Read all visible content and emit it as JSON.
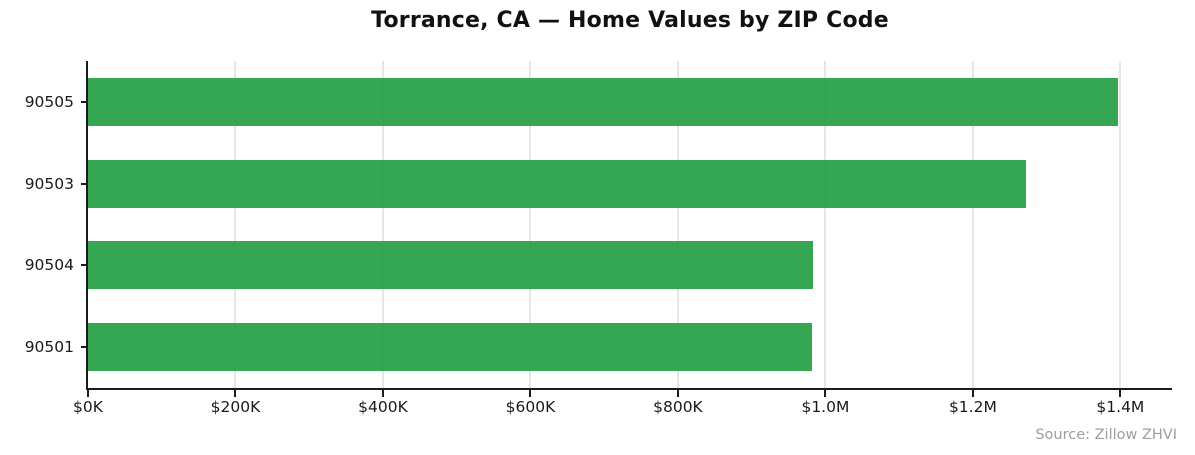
{
  "chart_data": {
    "type": "bar",
    "orientation": "horizontal",
    "title": "Torrance, CA — Home Values by ZIP Code",
    "categories": [
      "90505",
      "90503",
      "90504",
      "90501"
    ],
    "values": [
      1397000,
      1272000,
      983000,
      982000
    ],
    "value_unit": "USD",
    "xlabel": "",
    "ylabel": "",
    "xlim": [
      0,
      1470000
    ],
    "xticks": [
      {
        "value": 0,
        "label": "$0K"
      },
      {
        "value": 200000,
        "label": "$200K"
      },
      {
        "value": 400000,
        "label": "$400K"
      },
      {
        "value": 600000,
        "label": "$600K"
      },
      {
        "value": 800000,
        "label": "$800K"
      },
      {
        "value": 1000000,
        "label": "$1.0M"
      },
      {
        "value": 1200000,
        "label": "$1.2M"
      },
      {
        "value": 1400000,
        "label": "$1.4M"
      }
    ],
    "grid": "vertical",
    "legend": "none",
    "colors": {
      "bar": "#35a753",
      "bar_rgba": "rgba(31,157,64,0.9)",
      "gridline": "#e6e6e6",
      "spine": "#1c1c1c",
      "tick_label": "#1a1a1a",
      "title": "#111111",
      "source": "#9e9e9e",
      "background": "#ffffff"
    },
    "source_note": "Source: Zillow ZHVI"
  }
}
